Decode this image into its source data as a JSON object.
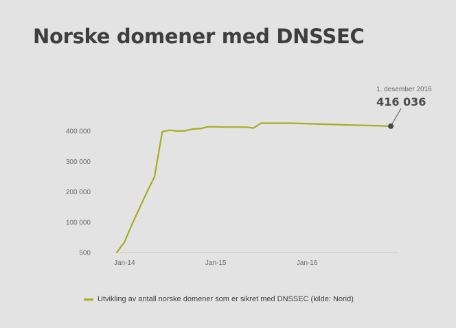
{
  "chart_data": {
    "type": "line",
    "title": "Norske domener med DNSSEC",
    "xlabel": "",
    "ylabel": "",
    "ylim": [
      500,
      400000
    ],
    "y_ticks": [
      {
        "value": 500,
        "label": "500"
      },
      {
        "value": 100000,
        "label": "100 000"
      },
      {
        "value": 200000,
        "label": "200 000"
      },
      {
        "value": 300000,
        "label": "300 000"
      },
      {
        "value": 400000,
        "label": "400 000"
      }
    ],
    "xlim": [
      "2013-12-01",
      "2016-12-31"
    ],
    "x_ticks": [
      {
        "date": "2014-01-01",
        "label": "Jan-14"
      },
      {
        "date": "2015-01-01",
        "label": "Jan-15"
      },
      {
        "date": "2016-01-01",
        "label": "Jan-16"
      }
    ],
    "grid": false,
    "legend_position": "bottom-left",
    "series": [
      {
        "name": "Utvikling av antall norske domener som er sikret med DNSSEC (kilde: Norid)",
        "color": "#a6ad1e",
        "points": [
          {
            "x": "2013-12-01",
            "y": 500
          },
          {
            "x": "2014-01-01",
            "y": 35000
          },
          {
            "x": "2014-02-01",
            "y": 95000
          },
          {
            "x": "2014-03-01",
            "y": 145000
          },
          {
            "x": "2014-04-01",
            "y": 200000
          },
          {
            "x": "2014-05-01",
            "y": 250000
          },
          {
            "x": "2014-06-01",
            "y": 398000
          },
          {
            "x": "2014-07-01",
            "y": 403000
          },
          {
            "x": "2014-08-01",
            "y": 400000
          },
          {
            "x": "2014-09-01",
            "y": 401000
          },
          {
            "x": "2014-10-01",
            "y": 407000
          },
          {
            "x": "2014-11-01",
            "y": 408000
          },
          {
            "x": "2014-12-01",
            "y": 414000
          },
          {
            "x": "2015-01-01",
            "y": 414000
          },
          {
            "x": "2015-02-01",
            "y": 413000
          },
          {
            "x": "2015-03-01",
            "y": 413000
          },
          {
            "x": "2015-04-01",
            "y": 413000
          },
          {
            "x": "2015-05-01",
            "y": 413000
          },
          {
            "x": "2015-06-01",
            "y": 410000
          },
          {
            "x": "2015-07-01",
            "y": 426000
          },
          {
            "x": "2015-08-01",
            "y": 426000
          },
          {
            "x": "2015-09-01",
            "y": 426000
          },
          {
            "x": "2015-10-01",
            "y": 426000
          },
          {
            "x": "2015-11-01",
            "y": 426000
          },
          {
            "x": "2015-12-01",
            "y": 425000
          },
          {
            "x": "2016-12-01",
            "y": 416036
          }
        ]
      }
    ],
    "annotation": {
      "x": "2016-12-01",
      "y": 416036,
      "date_label": "1. desember 2016",
      "value_label": "416 036"
    }
  }
}
